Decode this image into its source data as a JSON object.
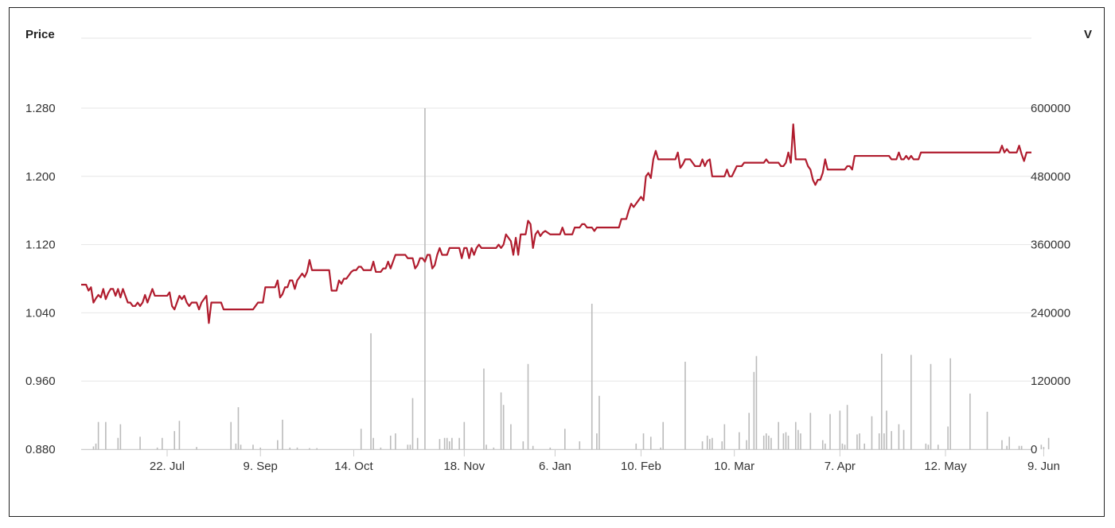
{
  "chart_data": {
    "type": "line",
    "price_axis_label": "Price",
    "volume_axis_label": "V",
    "price_ticks": [
      "1.280",
      "1.200",
      "1.120",
      "1.040",
      "0.960",
      "0.880"
    ],
    "volume_ticks": [
      "600000",
      "480000",
      "360000",
      "240000",
      "120000",
      "0"
    ],
    "x_ticks": [
      "22. Jul",
      "9. Sep",
      "14. Oct",
      "18. Nov",
      "6. Jan",
      "10. Feb",
      "10. Mar",
      "7. Apr",
      "12. May",
      "9. Jun"
    ],
    "ylim_price": [
      0.88,
      1.28
    ],
    "ylim_volume": [
      0,
      600000
    ],
    "grid": true,
    "colors": {
      "price": "#b01c2e",
      "volume": "#bbbbbb",
      "grid": "#e6e6e6"
    },
    "series": [
      {
        "type": "line",
        "values": [
          1.073,
          1.073,
          1.073,
          1.066,
          1.07,
          1.052,
          1.057,
          1.061,
          1.058,
          1.068,
          1.056,
          1.063,
          1.068,
          1.068,
          1.06,
          1.068,
          1.058,
          1.068,
          1.06,
          1.052,
          1.052,
          1.048,
          1.048,
          1.052,
          1.048,
          1.052,
          1.061,
          1.052,
          1.06,
          1.068,
          1.06,
          1.06,
          1.06,
          1.06,
          1.06,
          1.06,
          1.064,
          1.048,
          1.044,
          1.052,
          1.06,
          1.056,
          1.06,
          1.052,
          1.048,
          1.052,
          1.052,
          1.052,
          1.044,
          1.052,
          1.056,
          1.06,
          1.028,
          1.052,
          1.052,
          1.052,
          1.052,
          1.052,
          1.044,
          1.044,
          1.044,
          1.044,
          1.044,
          1.044,
          1.044,
          1.044,
          1.044,
          1.044,
          1.044,
          1.044,
          1.044,
          1.048,
          1.052,
          1.052,
          1.052,
          1.07,
          1.07,
          1.07,
          1.07,
          1.07,
          1.078,
          1.058,
          1.062,
          1.07,
          1.07,
          1.078,
          1.078,
          1.068,
          1.078,
          1.082,
          1.086,
          1.082,
          1.088,
          1.102,
          1.09,
          1.09,
          1.09,
          1.09,
          1.09,
          1.09,
          1.09,
          1.09,
          1.066,
          1.066,
          1.066,
          1.078,
          1.074,
          1.08,
          1.08,
          1.084,
          1.088,
          1.09,
          1.09,
          1.094,
          1.094,
          1.09,
          1.09,
          1.09,
          1.09,
          1.1,
          1.088,
          1.088,
          1.088,
          1.092,
          1.092,
          1.1,
          1.092,
          1.1,
          1.108,
          1.108,
          1.108,
          1.108,
          1.108,
          1.104,
          1.104,
          1.104,
          1.092,
          1.096,
          1.104,
          1.104,
          1.1,
          1.108,
          1.108,
          1.092,
          1.096,
          1.108,
          1.116,
          1.108,
          1.108,
          1.108,
          1.116,
          1.116,
          1.116,
          1.116,
          1.116,
          1.104,
          1.116,
          1.116,
          1.104,
          1.116,
          1.108,
          1.116,
          1.12,
          1.116,
          1.116,
          1.116,
          1.116,
          1.116,
          1.116,
          1.116,
          1.12,
          1.116,
          1.12,
          1.132,
          1.128,
          1.124,
          1.108,
          1.128,
          1.108,
          1.132,
          1.132,
          1.132,
          1.148,
          1.144,
          1.116,
          1.132,
          1.136,
          1.13,
          1.134,
          1.136,
          1.134,
          1.132,
          1.132,
          1.132,
          1.132,
          1.132,
          1.14,
          1.132,
          1.132,
          1.132,
          1.132,
          1.14,
          1.14,
          1.14,
          1.144,
          1.144,
          1.14,
          1.14,
          1.14,
          1.136,
          1.14,
          1.14,
          1.14,
          1.14,
          1.14,
          1.14,
          1.14,
          1.14,
          1.14,
          1.14,
          1.15,
          1.15,
          1.15,
          1.16,
          1.168,
          1.164,
          1.168,
          1.172,
          1.176,
          1.172,
          1.2,
          1.204,
          1.198,
          1.22,
          1.23,
          1.22,
          1.22,
          1.22,
          1.22,
          1.22,
          1.22,
          1.22,
          1.22,
          1.228,
          1.21,
          1.214,
          1.22,
          1.22,
          1.22,
          1.216,
          1.212,
          1.212,
          1.212,
          1.22,
          1.212,
          1.218,
          1.22,
          1.2,
          1.2,
          1.2,
          1.2,
          1.2,
          1.2,
          1.208,
          1.2,
          1.2,
          1.206,
          1.212,
          1.212,
          1.212,
          1.216,
          1.216,
          1.216,
          1.216,
          1.216,
          1.216,
          1.216,
          1.216,
          1.216,
          1.22,
          1.216,
          1.216,
          1.216,
          1.216,
          1.216,
          1.212,
          1.212,
          1.216,
          1.228,
          1.216,
          1.261,
          1.22,
          1.22,
          1.22,
          1.22,
          1.22,
          1.212,
          1.208,
          1.196,
          1.19,
          1.196,
          1.196,
          1.204,
          1.22,
          1.208,
          1.208,
          1.208,
          1.208,
          1.208,
          1.208,
          1.208,
          1.208,
          1.212,
          1.212,
          1.208,
          1.224,
          1.224,
          1.224,
          1.224,
          1.224,
          1.224,
          1.224,
          1.224,
          1.224,
          1.224,
          1.224,
          1.224,
          1.224,
          1.224,
          1.224,
          1.22,
          1.22,
          1.22,
          1.228,
          1.22,
          1.22,
          1.224,
          1.22,
          1.224,
          1.22,
          1.22,
          1.22,
          1.228,
          1.228,
          1.228,
          1.228,
          1.228,
          1.228,
          1.228,
          1.228,
          1.228,
          1.228,
          1.228,
          1.228,
          1.228,
          1.228,
          1.228,
          1.228,
          1.228,
          1.228,
          1.228,
          1.228,
          1.228,
          1.228,
          1.228,
          1.228,
          1.228,
          1.228,
          1.228,
          1.228,
          1.228,
          1.228,
          1.228,
          1.228,
          1.228,
          1.236,
          1.228,
          1.232,
          1.228,
          1.228,
          1.228,
          1.228,
          1.236,
          1.226,
          1.218,
          1.228,
          1.228,
          1.228
        ]
      },
      {
        "type": "bar",
        "values": [
          {
            "i": 5,
            "v": 5000
          },
          {
            "i": 6,
            "v": 10000
          },
          {
            "i": 7,
            "v": 48000
          },
          {
            "i": 10,
            "v": 48000
          },
          {
            "i": 15,
            "v": 20000
          },
          {
            "i": 16,
            "v": 44000
          },
          {
            "i": 24,
            "v": 22000
          },
          {
            "i": 31,
            "v": 3000
          },
          {
            "i": 33,
            "v": 20000
          },
          {
            "i": 38,
            "v": 32000
          },
          {
            "i": 40,
            "v": 50000
          },
          {
            "i": 47,
            "v": 4000
          },
          {
            "i": 61,
            "v": 48000
          },
          {
            "i": 63,
            "v": 10000
          },
          {
            "i": 64,
            "v": 74000
          },
          {
            "i": 65,
            "v": 8000
          },
          {
            "i": 70,
            "v": 8000
          },
          {
            "i": 73,
            "v": 3000
          },
          {
            "i": 80,
            "v": 16000
          },
          {
            "i": 82,
            "v": 52000
          },
          {
            "i": 85,
            "v": 3000
          },
          {
            "i": 88,
            "v": 3000
          },
          {
            "i": 93,
            "v": 2000
          },
          {
            "i": 96,
            "v": 2000
          },
          {
            "i": 114,
            "v": 36000
          },
          {
            "i": 118,
            "v": 204000
          },
          {
            "i": 119,
            "v": 20000
          },
          {
            "i": 122,
            "v": 3000
          },
          {
            "i": 126,
            "v": 24000
          },
          {
            "i": 128,
            "v": 28000
          },
          {
            "i": 133,
            "v": 8000
          },
          {
            "i": 134,
            "v": 8000
          },
          {
            "i": 135,
            "v": 90000
          },
          {
            "i": 137,
            "v": 20000
          },
          {
            "i": 140,
            "v": 600000
          },
          {
            "i": 146,
            "v": 18000
          },
          {
            "i": 148,
            "v": 20000
          },
          {
            "i": 149,
            "v": 20000
          },
          {
            "i": 150,
            "v": 14000
          },
          {
            "i": 151,
            "v": 20000
          },
          {
            "i": 154,
            "v": 20000
          },
          {
            "i": 156,
            "v": 48000
          },
          {
            "i": 164,
            "v": 142000
          },
          {
            "i": 165,
            "v": 8000
          },
          {
            "i": 168,
            "v": 3000
          },
          {
            "i": 171,
            "v": 100000
          },
          {
            "i": 172,
            "v": 78000
          },
          {
            "i": 175,
            "v": 44000
          },
          {
            "i": 180,
            "v": 14000
          },
          {
            "i": 182,
            "v": 150000
          },
          {
            "i": 184,
            "v": 6000
          },
          {
            "i": 191,
            "v": 3000
          },
          {
            "i": 197,
            "v": 36000
          },
          {
            "i": 203,
            "v": 14000
          },
          {
            "i": 208,
            "v": 256000
          },
          {
            "i": 210,
            "v": 28000
          },
          {
            "i": 211,
            "v": 94000
          },
          {
            "i": 226,
            "v": 10000
          },
          {
            "i": 229,
            "v": 28000
          },
          {
            "i": 232,
            "v": 22000
          },
          {
            "i": 236,
            "v": 3000
          },
          {
            "i": 237,
            "v": 48000
          },
          {
            "i": 246,
            "v": 154000
          },
          {
            "i": 253,
            "v": 14000
          },
          {
            "i": 255,
            "v": 24000
          },
          {
            "i": 256,
            "v": 18000
          },
          {
            "i": 257,
            "v": 20000
          },
          {
            "i": 261,
            "v": 14000
          },
          {
            "i": 262,
            "v": 44000
          },
          {
            "i": 268,
            "v": 30000
          },
          {
            "i": 271,
            "v": 16000
          },
          {
            "i": 272,
            "v": 64000
          },
          {
            "i": 274,
            "v": 136000
          },
          {
            "i": 275,
            "v": 164000
          },
          {
            "i": 278,
            "v": 24000
          },
          {
            "i": 279,
            "v": 28000
          },
          {
            "i": 280,
            "v": 24000
          },
          {
            "i": 281,
            "v": 20000
          },
          {
            "i": 284,
            "v": 48000
          },
          {
            "i": 286,
            "v": 28000
          },
          {
            "i": 287,
            "v": 30000
          },
          {
            "i": 288,
            "v": 24000
          },
          {
            "i": 291,
            "v": 48000
          },
          {
            "i": 292,
            "v": 34000
          },
          {
            "i": 293,
            "v": 28000
          },
          {
            "i": 297,
            "v": 64000
          },
          {
            "i": 302,
            "v": 16000
          },
          {
            "i": 303,
            "v": 10000
          },
          {
            "i": 305,
            "v": 62000
          },
          {
            "i": 309,
            "v": 68000
          },
          {
            "i": 310,
            "v": 10000
          },
          {
            "i": 311,
            "v": 8000
          },
          {
            "i": 312,
            "v": 78000
          },
          {
            "i": 316,
            "v": 26000
          },
          {
            "i": 317,
            "v": 28000
          },
          {
            "i": 319,
            "v": 10000
          },
          {
            "i": 322,
            "v": 58000
          },
          {
            "i": 325,
            "v": 28000
          },
          {
            "i": 326,
            "v": 168000
          },
          {
            "i": 327,
            "v": 28000
          },
          {
            "i": 328,
            "v": 68000
          },
          {
            "i": 330,
            "v": 32000
          },
          {
            "i": 333,
            "v": 44000
          },
          {
            "i": 335,
            "v": 34000
          },
          {
            "i": 338,
            "v": 166000
          },
          {
            "i": 344,
            "v": 10000
          },
          {
            "i": 345,
            "v": 8000
          },
          {
            "i": 346,
            "v": 150000
          },
          {
            "i": 349,
            "v": 8000
          },
          {
            "i": 353,
            "v": 40000
          },
          {
            "i": 354,
            "v": 160000
          },
          {
            "i": 362,
            "v": 98000
          },
          {
            "i": 369,
            "v": 66000
          },
          {
            "i": 375,
            "v": 16000
          },
          {
            "i": 377,
            "v": 6000
          },
          {
            "i": 378,
            "v": 22000
          },
          {
            "i": 382,
            "v": 6000
          },
          {
            "i": 383,
            "v": 6000
          },
          {
            "i": 391,
            "v": 8000
          },
          {
            "i": 392,
            "v": 4000
          },
          {
            "i": 394,
            "v": 20000
          }
        ]
      }
    ]
  }
}
